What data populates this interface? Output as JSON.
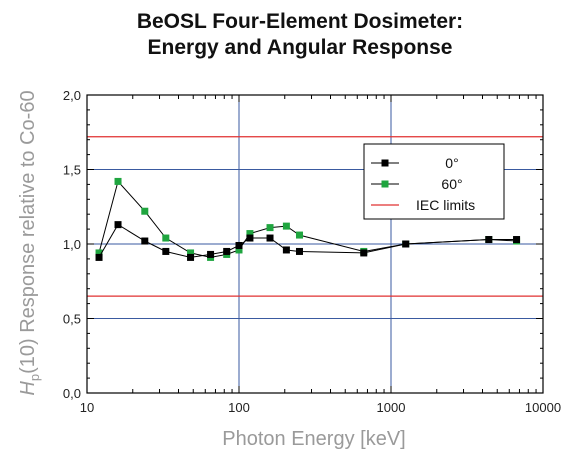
{
  "chart_data": {
    "type": "line",
    "title_lines": [
      "BeOSL Four-Element Dosimeter:",
      "Energy and Angular Response"
    ],
    "xlabel": "Photon Energy [keV]",
    "ylabel": {
      "symbol": "H",
      "subscript": "p",
      "text": "(10) Response relative to Co-60"
    },
    "x_scale": "log",
    "xlim": [
      10,
      10000
    ],
    "ylim": [
      0.0,
      2.0
    ],
    "x_ticks": [
      10,
      100,
      1000,
      10000
    ],
    "x_tick_labels": [
      "10",
      "100",
      "1000",
      "10000"
    ],
    "y_ticks": [
      0.0,
      0.5,
      1.0,
      1.5,
      2.0
    ],
    "y_tick_labels": [
      "0,0",
      "0,5",
      "1,0",
      "1,5",
      "2,0"
    ],
    "grid": true,
    "legend_position": "top-right",
    "series": [
      {
        "name": "0°",
        "color": "#000000",
        "marker": "square",
        "points": [
          [
            12,
            0.91
          ],
          [
            16,
            1.13
          ],
          [
            24,
            1.02
          ],
          [
            33,
            0.95
          ],
          [
            48,
            0.91
          ],
          [
            65,
            0.93
          ],
          [
            83,
            0.95
          ],
          [
            100,
            0.99
          ],
          [
            118,
            1.04
          ],
          [
            160,
            1.04
          ],
          [
            205,
            0.96
          ],
          [
            250,
            0.95
          ],
          [
            662,
            0.94
          ],
          [
            1250,
            1.0
          ],
          [
            4400,
            1.03
          ],
          [
            6700,
            1.03
          ]
        ]
      },
      {
        "name": "60°",
        "color": "#1fa53f",
        "marker": "square",
        "points": [
          [
            12,
            0.94
          ],
          [
            16,
            1.42
          ],
          [
            24,
            1.22
          ],
          [
            33,
            1.04
          ],
          [
            48,
            0.94
          ],
          [
            65,
            0.91
          ],
          [
            83,
            0.93
          ],
          [
            100,
            0.96
          ],
          [
            118,
            1.07
          ],
          [
            160,
            1.11
          ],
          [
            205,
            1.12
          ],
          [
            250,
            1.06
          ],
          [
            662,
            0.95
          ],
          [
            1250,
            1.0
          ],
          [
            4400,
            1.03
          ],
          [
            6700,
            1.02
          ]
        ]
      }
    ],
    "reference_lines": {
      "name": "IEC limits",
      "color": "#e03030",
      "values": [
        1.72,
        0.65
      ]
    },
    "grid_color": "#3a5aa0"
  }
}
